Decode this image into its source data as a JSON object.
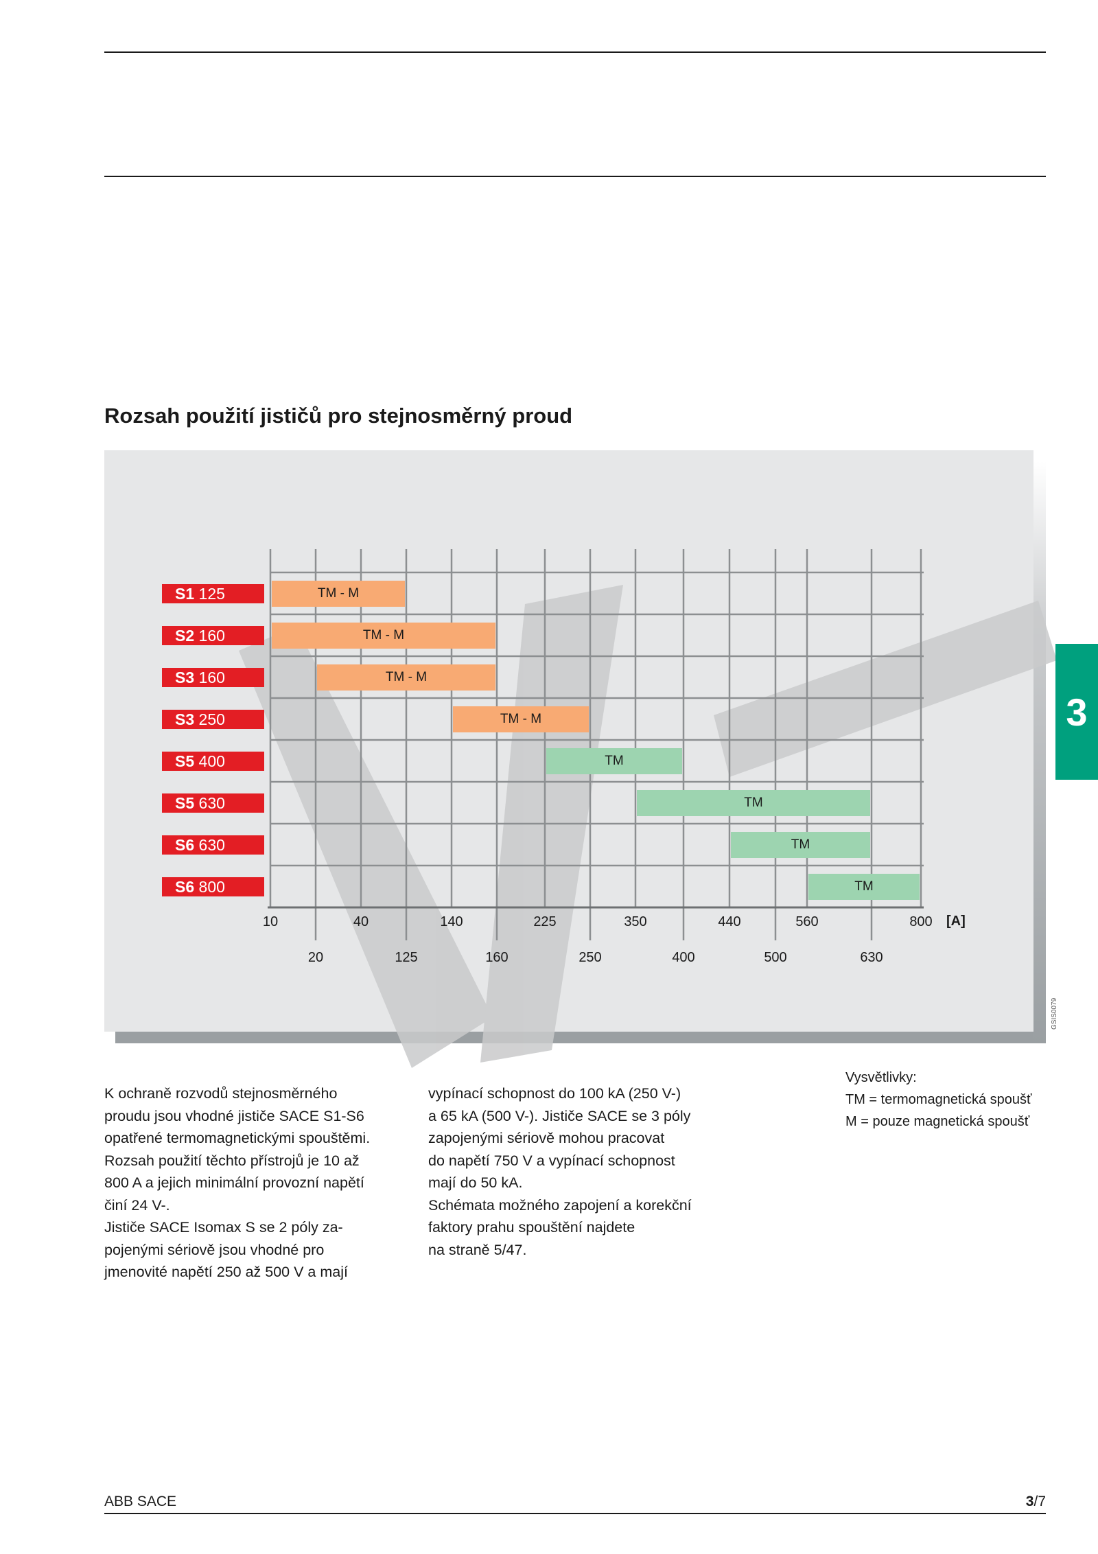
{
  "section_title": "Rozsah použití jističů pro stejnosměrný proud",
  "chapter_tab": "3",
  "chart_code": "GSIS0079",
  "colors": {
    "label_red": "#e31e24",
    "tm_m_orange": "#f8aa73",
    "tm_green": "#9dd4b0",
    "chapter_green": "#00a07e"
  },
  "chart_data": {
    "type": "range-bar",
    "unit": "[A]",
    "ticks_top": [
      "10",
      "40",
      "140",
      "225",
      "350",
      "440",
      "560",
      "800"
    ],
    "ticks_bottom": [
      "20",
      "125",
      "160",
      "250",
      "400",
      "500",
      "630"
    ],
    "rows": [
      {
        "model": "S1",
        "size": "125",
        "release": "TM - M",
        "from": 10,
        "to": 125
      },
      {
        "model": "S2",
        "size": "160",
        "release": "TM - M",
        "from": 10,
        "to": 160
      },
      {
        "model": "S3",
        "size": "160",
        "release": "TM - M",
        "from": 20,
        "to": 160
      },
      {
        "model": "S3",
        "size": "250",
        "release": "TM - M",
        "from": 140,
        "to": 250
      },
      {
        "model": "S5",
        "size": "400",
        "release": "TM",
        "from": 225,
        "to": 400
      },
      {
        "model": "S5",
        "size": "630",
        "release": "TM",
        "from": 350,
        "to": 630
      },
      {
        "model": "S6",
        "size": "630",
        "release": "TM",
        "from": 440,
        "to": 630
      },
      {
        "model": "S6",
        "size": "800",
        "release": "TM",
        "from": 560,
        "to": 800
      }
    ]
  },
  "text_columns": [
    [
      "K ochraně rozvodů stejnosměrného",
      "proudu jsou vhodné jističe SACE S1-S6",
      "opatřené termomagnetickými spouštěmi.",
      "Rozsah použití těchto přístrojů je 10 až",
      "800 A a jejich minimální provozní napětí",
      "činí 24 V-.",
      "Jističe SACE Isomax S se 2 póly za-",
      "pojenými sériově jsou vhodné pro",
      "jmenovité napětí 250 až 500 V a mají"
    ],
    [
      "vypínací schopnost do 100 kA (250 V-)",
      "a 65 kA (500 V-). Jističe SACE se 3 póly",
      "zapojenými sériově mohou pracovat",
      "do napětí 750 V a vypínací schopnost",
      "mají do 50 kA.",
      "Schémata možného zapojení a korekční",
      "faktory prahu spouštění najdete",
      "na straně 5/47."
    ]
  ],
  "legend": {
    "title": "Vysvětlivky:",
    "items": [
      "TM = termomagnetická spoušť",
      "M = pouze magnetická spoušť"
    ]
  },
  "footer": {
    "brand": "ABB SACE",
    "page_bold": "3",
    "page_rest": "/7"
  }
}
